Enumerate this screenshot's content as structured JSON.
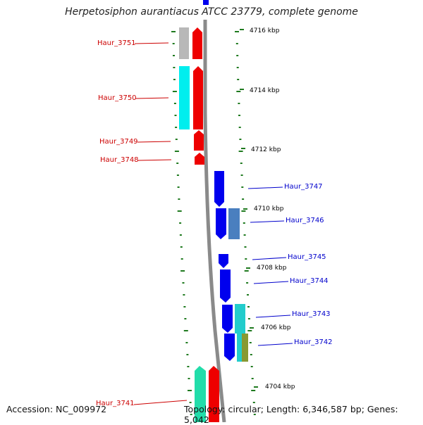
{
  "title": "Herpetosiphon aurantiacus ATCC 23779, complete genome",
  "footer": {
    "accession": "Accession: NC_009972",
    "summary": "Topology: circular; Length: 6,346,587 bp; Genes: 5,042"
  },
  "colors": {
    "backbone": "#888888",
    "tick": "#1f7a1f",
    "forward_label": "#cc0000",
    "reverse_label": "#0000cc"
  },
  "scale_marks": [
    {
      "label": "4716 kbp"
    },
    {
      "label": "4714 kbp"
    },
    {
      "label": "4712 kbp"
    },
    {
      "label": "4710 kbp"
    },
    {
      "label": "4708 kbp"
    },
    {
      "label": "4706 kbp"
    },
    {
      "label": "4704 kbp"
    }
  ],
  "genes": [
    {
      "name": "Haur_3751",
      "strand": "forward"
    },
    {
      "name": "Haur_3750",
      "strand": "forward"
    },
    {
      "name": "Haur_3749",
      "strand": "forward"
    },
    {
      "name": "Haur_3748",
      "strand": "forward"
    },
    {
      "name": "Haur_3747",
      "strand": "reverse"
    },
    {
      "name": "Haur_3746",
      "strand": "reverse"
    },
    {
      "name": "Haur_3745",
      "strand": "reverse"
    },
    {
      "name": "Haur_3744",
      "strand": "reverse"
    },
    {
      "name": "Haur_3743",
      "strand": "reverse"
    },
    {
      "name": "Haur_3742",
      "strand": "reverse"
    },
    {
      "name": "Haur_3741",
      "strand": "forward"
    }
  ]
}
